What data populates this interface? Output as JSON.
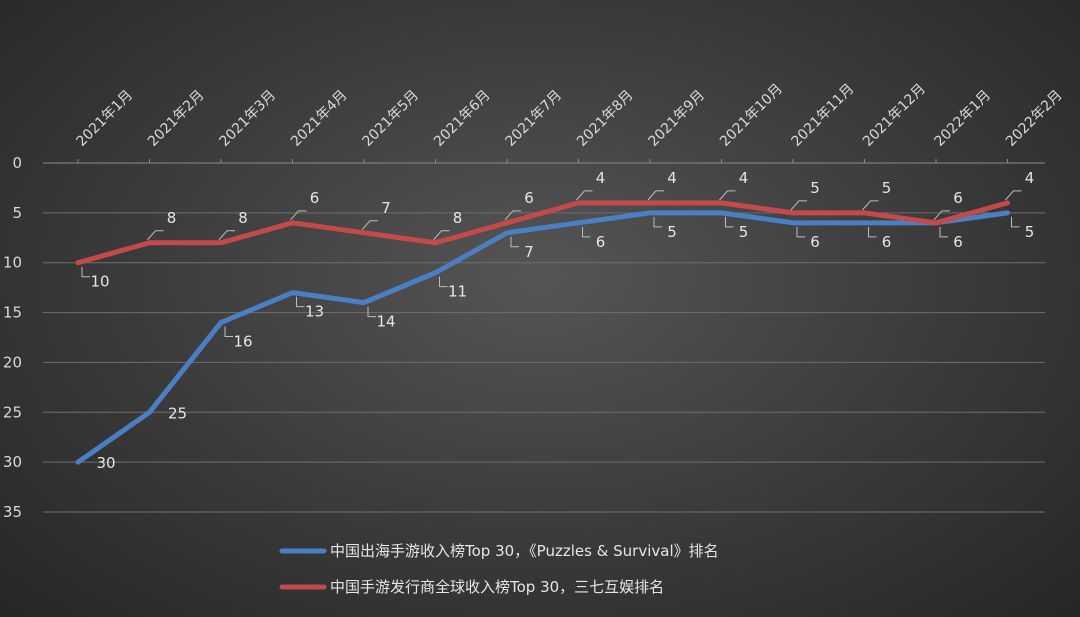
{
  "chart_data": {
    "type": "line",
    "categories": [
      "2021年1月",
      "2021年2月",
      "2021年3月",
      "2021年4月",
      "2021年5月",
      "2021年6月",
      "2021年7月",
      "2021年8月",
      "2021年9月",
      "2021年10月",
      "2021年11月",
      "2021年12月",
      "2022年1月",
      "2022年2月"
    ],
    "ylim": [
      0,
      35
    ],
    "y_ticks": [
      0,
      5,
      10,
      15,
      20,
      25,
      30,
      35
    ],
    "y_reversed": true,
    "grid": true,
    "legend_position": "bottom",
    "series": [
      {
        "name": "中国出海手游收入榜Top 30，《Puzzles & Survival》排名",
        "color": "#4a7fc4",
        "values": [
          30,
          25,
          16,
          13,
          14,
          11,
          7,
          6,
          5,
          5,
          6,
          6,
          6,
          5
        ],
        "label_positions": [
          "right",
          "right",
          "below",
          "below",
          "below",
          "below",
          "below",
          "below",
          "below",
          "below",
          "below",
          "below",
          "below",
          "below"
        ]
      },
      {
        "name": "中国手游发行商全球收入榜Top 30，三七互娱排名",
        "color": "#c44a4a",
        "values": [
          10,
          8,
          8,
          6,
          7,
          8,
          6,
          4,
          4,
          4,
          5,
          5,
          6,
          4
        ],
        "label_positions": [
          "below",
          "above",
          "above",
          "above",
          "above",
          "above",
          "above",
          "above",
          "above",
          "above",
          "above",
          "above",
          "above",
          "above"
        ]
      }
    ]
  }
}
